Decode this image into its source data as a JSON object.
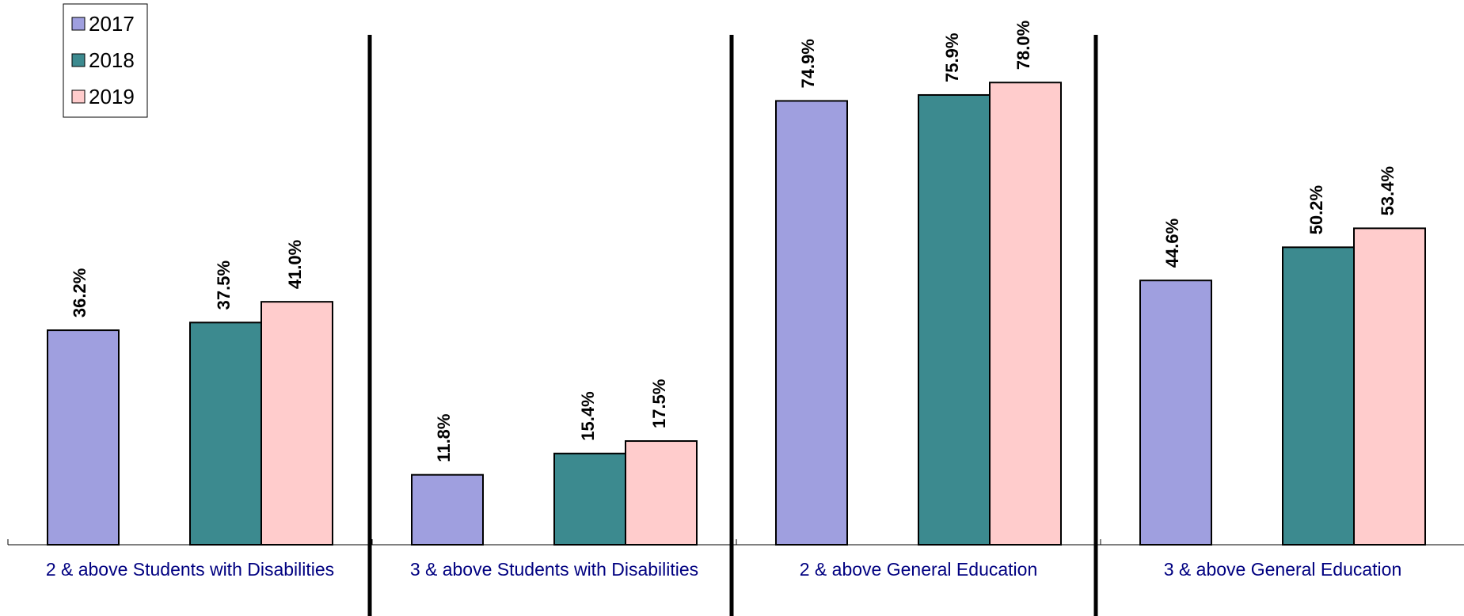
{
  "chart_data": {
    "type": "bar",
    "categories": [
      "2 & above Students with Disabilities",
      "3 & above Students with Disabilities",
      "2 & above General Education",
      "3 & above General Education"
    ],
    "series": [
      {
        "name": "2017",
        "color": "#9f9fdf",
        "values": [
          36.2,
          11.8,
          74.9,
          44.6
        ],
        "labels": [
          "36.2%",
          "11.8%",
          "74.9%",
          "44.6%"
        ]
      },
      {
        "name": "2018",
        "color": "#3c8a8f",
        "values": [
          37.5,
          15.4,
          75.9,
          50.2
        ],
        "labels": [
          "37.5%",
          "15.4%",
          "75.9%",
          "50.2%"
        ]
      },
      {
        "name": "2019",
        "color": "#ffcccc",
        "values": [
          41.0,
          17.5,
          78.0,
          53.4
        ],
        "labels": [
          "41.0%",
          "17.5%",
          "78.0%",
          "53.4%"
        ]
      }
    ],
    "ylim": [
      0,
      100
    ],
    "grid": false,
    "legend_position": "top-left",
    "group_separators": true
  }
}
